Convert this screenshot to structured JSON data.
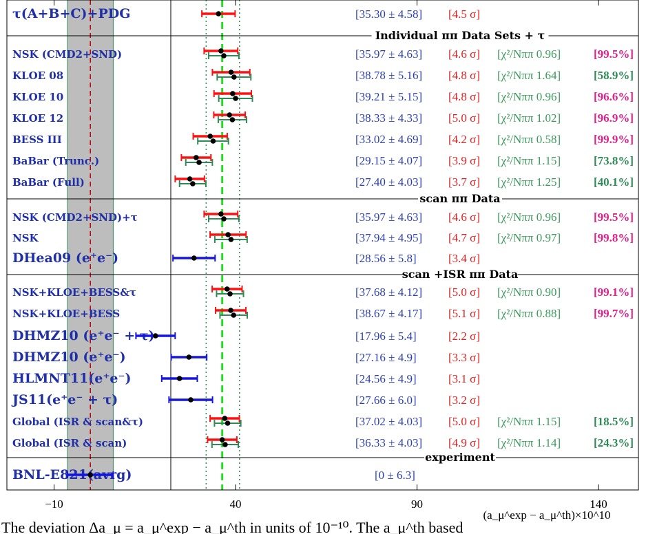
{
  "chart_data": {
    "type": "forest-plot",
    "xlabel": "(a_μ^exp − a_μ^th)×10^10",
    "xlim": [
      -23,
      151
    ],
    "xticks": [
      -10,
      40,
      90,
      140
    ],
    "reference_lines": {
      "experiment_center": 0,
      "experiment_band": [
        -6.3,
        6.3
      ],
      "global_fit_center": 36.33,
      "global_fit_band": [
        31.9,
        41.1
      ]
    },
    "colors": {
      "label": "#1f2fa8",
      "value": "#2b3fb0",
      "sigma": "#e02020",
      "chi2": "#3a9a5a",
      "prob_high": "#e0208a",
      "prob_low": "#2e8b57",
      "bar_red": "#ff1010",
      "bar_green": "#2e8b57",
      "bar_blue": "#1515e0",
      "band": "#bdbdbd"
    },
    "sections": [
      {
        "title": "Individual ππ Data Sets + τ"
      },
      {
        "title": "scan ππ Data"
      },
      {
        "title": "scan +ISR ππ Data"
      },
      {
        "title": "experiment"
      }
    ],
    "rows": [
      {
        "label": "τ(A+B+C)+PDG",
        "size": "big",
        "value": "[35.30 ± 4.58]",
        "sigma": "[4.5 σ]",
        "chi2": "",
        "prob": "",
        "center": 35.3,
        "err": 4.58,
        "style": "red"
      },
      {
        "label": "NSK (CMD2+SND)",
        "size": "small",
        "value": "[35.97 ± 4.63]",
        "sigma": "[4.6 σ]",
        "chi2": "[χ²/Nππ 0.96]",
        "prob": "[99.5%]",
        "probColor": "high",
        "center": 35.97,
        "err": 4.63,
        "style": "redgreen"
      },
      {
        "label": "KLOE 08",
        "size": "small",
        "value": "[38.78 ± 5.16]",
        "sigma": "[4.8 σ]",
        "chi2": "[χ²/Nππ 1.64]",
        "prob": "[58.9%]",
        "probColor": "low",
        "center": 38.78,
        "err": 5.16,
        "style": "redgreen"
      },
      {
        "label": "KLOE 10",
        "size": "small",
        "value": "[39.21 ± 5.15]",
        "sigma": "[4.8 σ]",
        "chi2": "[χ²/Nππ 0.96]",
        "prob": "[96.6%]",
        "probColor": "high",
        "center": 39.21,
        "err": 5.15,
        "style": "redgreen"
      },
      {
        "label": "KLOE 12",
        "size": "small",
        "value": "[38.33 ± 4.33]",
        "sigma": "[5.0 σ]",
        "chi2": "[χ²/Nππ 1.02]",
        "prob": "[96.9%]",
        "probColor": "high",
        "center": 38.33,
        "err": 4.33,
        "style": "redgreen"
      },
      {
        "label": "BESS III",
        "size": "small",
        "value": "[33.02 ± 4.69]",
        "sigma": "[4.2 σ]",
        "chi2": "[χ²/Nππ 0.58]",
        "prob": "[99.9%]",
        "probColor": "high",
        "center": 33.02,
        "err": 4.69,
        "style": "redgreen"
      },
      {
        "label": "BaBar (Trunc.)",
        "size": "small",
        "value": "[29.15 ± 4.07]",
        "sigma": "[3.9 σ]",
        "chi2": "[χ²/Nππ 1.15]",
        "prob": "[73.8%]",
        "probColor": "low",
        "center": 29.15,
        "err": 4.07,
        "style": "redgreen"
      },
      {
        "label": "BaBar (Full)",
        "size": "small",
        "value": "[27.40 ± 4.03]",
        "sigma": "[3.7 σ]",
        "chi2": "[χ²/Nππ 1.25]",
        "prob": "[40.1%]",
        "probColor": "low",
        "center": 27.4,
        "err": 4.03,
        "style": "redgreen"
      },
      {
        "label": "NSK (CMD2+SND)+τ",
        "size": "small",
        "value": "[35.97 ± 4.63]",
        "sigma": "[4.6 σ]",
        "chi2": "[χ²/Nππ 0.96]",
        "prob": "[99.5%]",
        "probColor": "high",
        "center": 35.97,
        "err": 4.63,
        "style": "redgreen"
      },
      {
        "label": "NSK",
        "size": "small",
        "value": "[37.94 ± 4.95]",
        "sigma": "[4.7 σ]",
        "chi2": "[χ²/Nππ 0.97]",
        "prob": "[99.8%]",
        "probColor": "high",
        "center": 37.94,
        "err": 4.95,
        "style": "redgreen"
      },
      {
        "label": "DHea09 (e⁺e⁻)",
        "size": "big",
        "value": "[28.56 ± 5.8]",
        "sigma": "[3.4 σ]",
        "chi2": "",
        "prob": "",
        "center": 28.56,
        "err": 5.8,
        "style": "blue"
      },
      {
        "label": "NSK+KLOE+BESS&τ",
        "size": "small",
        "value": "[37.68 ± 4.12]",
        "sigma": "[5.0 σ]",
        "chi2": "[χ²/Nππ 0.90]",
        "prob": "[99.1%]",
        "probColor": "high",
        "center": 37.68,
        "err": 4.12,
        "style": "redgreen"
      },
      {
        "label": "NSK+KLOE+BESS",
        "size": "small",
        "value": "[38.67 ± 4.17]",
        "sigma": "[5.1 σ]",
        "chi2": "[χ²/Nππ 0.88]",
        "prob": "[99.7%]",
        "probColor": "high",
        "center": 38.67,
        "err": 4.17,
        "style": "redgreen"
      },
      {
        "label": "DHMZ10 (e⁺e⁻ + τ)",
        "size": "big",
        "value": "[17.96 ± 5.4]",
        "sigma": "[2.2 σ]",
        "chi2": "",
        "prob": "",
        "center": 17.96,
        "err": 5.4,
        "style": "blue"
      },
      {
        "label": "DHMZ10 (e⁺e⁻)",
        "size": "big",
        "value": "[27.16 ± 4.9]",
        "sigma": "[3.3 σ]",
        "chi2": "",
        "prob": "",
        "center": 27.16,
        "err": 4.9,
        "style": "blue"
      },
      {
        "label": "HLMNT11(e⁺e⁻)",
        "size": "big",
        "value": "[24.56 ± 4.9]",
        "sigma": "[3.1 σ]",
        "chi2": "",
        "prob": "",
        "center": 24.56,
        "err": 4.9,
        "style": "blue"
      },
      {
        "label": "JS11(e⁺e⁻ + τ)",
        "size": "big",
        "value": "[27.66 ± 6.0]",
        "sigma": "[3.2 σ]",
        "chi2": "",
        "prob": "",
        "center": 27.66,
        "err": 6.0,
        "style": "blue"
      },
      {
        "label": "Global (ISR & scan&τ)",
        "size": "small",
        "value": "[37.02 ± 4.03]",
        "sigma": "[5.0 σ]",
        "chi2": "[χ²/Nππ 1.15]",
        "prob": "[18.5%]",
        "probColor": "low",
        "center": 37.02,
        "err": 4.03,
        "style": "redgreen"
      },
      {
        "label": "Global (ISR & scan)",
        "size": "small",
        "value": "[36.33 ± 4.03]",
        "sigma": "[4.9 σ]",
        "chi2": "[χ²/Nππ 1.14]",
        "prob": "[24.3%]",
        "probColor": "low",
        "center": 36.33,
        "err": 4.03,
        "style": "redgreen"
      },
      {
        "label": "BNL-E821(avrg)",
        "size": "big",
        "value": "[0 ± 6.3]",
        "sigma": "",
        "chi2": "",
        "prob": "",
        "center": 0,
        "err": 6.3,
        "style": "blue"
      }
    ]
  },
  "caption_fragment": "The deviation Δa_μ = a_μ^exp − a_μ^th in units of 10⁻¹⁰. The a_μ^th based"
}
